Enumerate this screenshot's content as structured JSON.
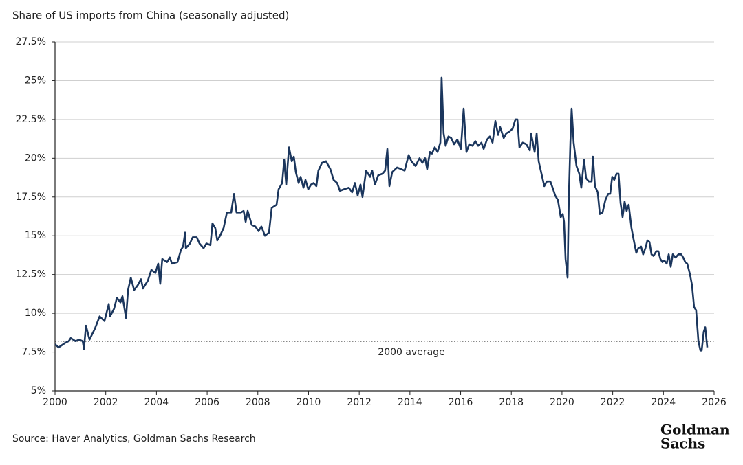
{
  "chart_data": {
    "type": "line",
    "title": "Share of US imports from China (seasonally adjusted)",
    "source": "Source: Haver Analytics, Goldman Sachs Research",
    "logo_lines": [
      "Goldman",
      "Sachs"
    ],
    "reference_value": 8.2,
    "reference_label": "2000 average",
    "xlim": [
      2000,
      2026
    ],
    "xticks": [
      2000,
      2002,
      2004,
      2006,
      2008,
      2010,
      2012,
      2014,
      2016,
      2018,
      2020,
      2022,
      2024,
      2026
    ],
    "ylim": [
      5,
      27.5
    ],
    "yticks": [
      {
        "value": 5,
        "label": "5%"
      },
      {
        "value": 7.5,
        "label": "7.5%"
      },
      {
        "value": 10,
        "label": "10%"
      },
      {
        "value": 12.5,
        "label": "12.5%"
      },
      {
        "value": 15,
        "label": "15%"
      },
      {
        "value": 17.5,
        "label": "17.5%"
      },
      {
        "value": 20,
        "label": "20%"
      },
      {
        "value": 22.5,
        "label": "22.5%"
      },
      {
        "value": 25,
        "label": "25%"
      },
      {
        "value": 27.5,
        "label": "27.5%"
      }
    ],
    "grid": true,
    "x": [
      2000.0,
      2000.14,
      2000.41,
      2000.54,
      2000.62,
      2000.81,
      2000.95,
      2001.09,
      2001.14,
      2001.22,
      2001.36,
      2001.57,
      2001.76,
      2001.95,
      2002.12,
      2002.17,
      2002.33,
      2002.44,
      2002.58,
      2002.66,
      2002.8,
      2002.88,
      2002.99,
      2003.12,
      2003.26,
      2003.39,
      2003.47,
      2003.66,
      2003.8,
      2003.96,
      2004.07,
      2004.15,
      2004.23,
      2004.42,
      2004.53,
      2004.61,
      2004.83,
      2004.97,
      2005.05,
      2005.13,
      2005.16,
      2005.32,
      2005.43,
      2005.59,
      2005.7,
      2005.86,
      2005.97,
      2006.13,
      2006.21,
      2006.32,
      2006.4,
      2006.51,
      2006.65,
      2006.78,
      2006.95,
      2007.06,
      2007.16,
      2007.33,
      2007.44,
      2007.52,
      2007.6,
      2007.76,
      2007.9,
      2008.03,
      2008.14,
      2008.28,
      2008.44,
      2008.55,
      2008.74,
      2008.82,
      2008.96,
      2009.04,
      2009.12,
      2009.23,
      2009.34,
      2009.42,
      2009.5,
      2009.61,
      2009.69,
      2009.8,
      2009.88,
      2009.99,
      2010.1,
      2010.2,
      2010.31,
      2010.39,
      2010.53,
      2010.69,
      2010.86,
      2010.99,
      2011.13,
      2011.24,
      2011.4,
      2011.59,
      2011.72,
      2011.83,
      2011.94,
      2012.05,
      2012.13,
      2012.27,
      2012.43,
      2012.51,
      2012.62,
      2012.75,
      2012.92,
      2013.02,
      2013.11,
      2013.19,
      2013.3,
      2013.49,
      2013.65,
      2013.79,
      2013.95,
      2014.06,
      2014.22,
      2014.38,
      2014.49,
      2014.6,
      2014.68,
      2014.79,
      2014.87,
      2014.98,
      2015.09,
      2015.2,
      2015.25,
      2015.33,
      2015.41,
      2015.52,
      2015.63,
      2015.74,
      2015.87,
      2016.01,
      2016.12,
      2016.23,
      2016.34,
      2016.47,
      2016.58,
      2016.69,
      2016.82,
      2016.91,
      2017.04,
      2017.15,
      2017.26,
      2017.37,
      2017.48,
      2017.56,
      2017.7,
      2017.8,
      2017.91,
      2018.05,
      2018.16,
      2018.24,
      2018.32,
      2018.45,
      2018.59,
      2018.73,
      2018.78,
      2018.92,
      2019.0,
      2019.08,
      2019.19,
      2019.3,
      2019.4,
      2019.54,
      2019.65,
      2019.73,
      2019.84,
      2019.95,
      2020.03,
      2020.08,
      2020.14,
      2020.22,
      2020.27,
      2020.33,
      2020.38,
      2020.46,
      2020.57,
      2020.68,
      2020.76,
      2020.87,
      2020.95,
      2021.06,
      2021.17,
      2021.22,
      2021.3,
      2021.41,
      2021.49,
      2021.6,
      2021.71,
      2021.82,
      2021.9,
      2021.98,
      2022.06,
      2022.15,
      2022.23,
      2022.31,
      2022.39,
      2022.47,
      2022.55,
      2022.63,
      2022.74,
      2022.82,
      2022.93,
      2023.01,
      2023.12,
      2023.2,
      2023.29,
      2023.37,
      2023.45,
      2023.53,
      2023.61,
      2023.72,
      2023.8,
      2023.88,
      2023.96,
      2024.04,
      2024.13,
      2024.21,
      2024.29,
      2024.37,
      2024.48,
      2024.59,
      2024.7,
      2024.78,
      2024.86,
      2024.94,
      2025.05,
      2025.13,
      2025.21,
      2025.29,
      2025.38,
      2025.46,
      2025.51,
      2025.59,
      2025.65,
      2025.73
    ],
    "series": [
      {
        "color": "#1b365d",
        "values": [
          8.0,
          7.8,
          8.1,
          8.2,
          8.4,
          8.2,
          8.3,
          8.2,
          7.7,
          9.2,
          8.3,
          9.0,
          9.8,
          9.5,
          10.6,
          9.8,
          10.3,
          11.0,
          10.7,
          11.1,
          9.7,
          11.5,
          12.3,
          11.5,
          11.8,
          12.2,
          11.6,
          12.1,
          12.8,
          12.6,
          13.2,
          11.9,
          13.5,
          13.3,
          13.6,
          13.2,
          13.3,
          14.1,
          14.3,
          15.2,
          14.2,
          14.5,
          14.9,
          14.9,
          14.5,
          14.2,
          14.5,
          14.4,
          15.8,
          15.5,
          14.7,
          15.0,
          15.5,
          16.5,
          16.5,
          17.7,
          16.5,
          16.5,
          16.6,
          15.9,
          16.6,
          15.7,
          15.6,
          15.3,
          15.6,
          15.0,
          15.2,
          16.8,
          17.0,
          18.0,
          18.4,
          19.9,
          18.3,
          20.7,
          19.8,
          20.1,
          19.1,
          18.4,
          18.8,
          18.1,
          18.6,
          18.0,
          18.3,
          18.4,
          18.2,
          19.2,
          19.7,
          19.8,
          19.3,
          18.6,
          18.4,
          17.9,
          18.0,
          18.1,
          17.8,
          18.4,
          17.6,
          18.3,
          17.5,
          19.2,
          18.8,
          19.2,
          18.3,
          18.9,
          19.0,
          19.2,
          20.6,
          18.2,
          19.1,
          19.4,
          19.3,
          19.2,
          20.2,
          19.8,
          19.5,
          20.0,
          19.7,
          20.0,
          19.3,
          20.4,
          20.3,
          20.7,
          20.4,
          21.0,
          25.2,
          21.6,
          20.8,
          21.4,
          21.3,
          20.9,
          21.2,
          20.6,
          23.2,
          20.4,
          20.9,
          20.8,
          21.1,
          20.8,
          21.0,
          20.6,
          21.2,
          21.4,
          21.0,
          22.4,
          21.5,
          22.0,
          21.3,
          21.6,
          21.7,
          21.9,
          22.5,
          22.5,
          20.7,
          21.0,
          20.9,
          20.5,
          21.6,
          20.4,
          21.6,
          19.8,
          19.0,
          18.2,
          18.5,
          18.5,
          18.0,
          17.6,
          17.3,
          16.2,
          16.4,
          15.9,
          13.5,
          12.3,
          17.5,
          21.0,
          23.2,
          21.0,
          19.5,
          19.0,
          18.1,
          19.9,
          18.7,
          18.5,
          18.5,
          20.1,
          18.2,
          17.8,
          16.4,
          16.5,
          17.3,
          17.7,
          17.7,
          18.8,
          18.6,
          19.0,
          19.0,
          17.1,
          16.2,
          17.2,
          16.6,
          17.0,
          15.5,
          14.8,
          13.9,
          14.2,
          14.3,
          13.8,
          14.2,
          14.7,
          14.6,
          13.8,
          13.7,
          14.0,
          14.0,
          13.5,
          13.3,
          13.4,
          13.2,
          13.8,
          13.0,
          13.8,
          13.6,
          13.8,
          13.8,
          13.6,
          13.3,
          13.2,
          12.5,
          11.8,
          10.4,
          10.2,
          8.2,
          7.6,
          7.6,
          8.8,
          9.1,
          7.8
        ]
      }
    ]
  }
}
